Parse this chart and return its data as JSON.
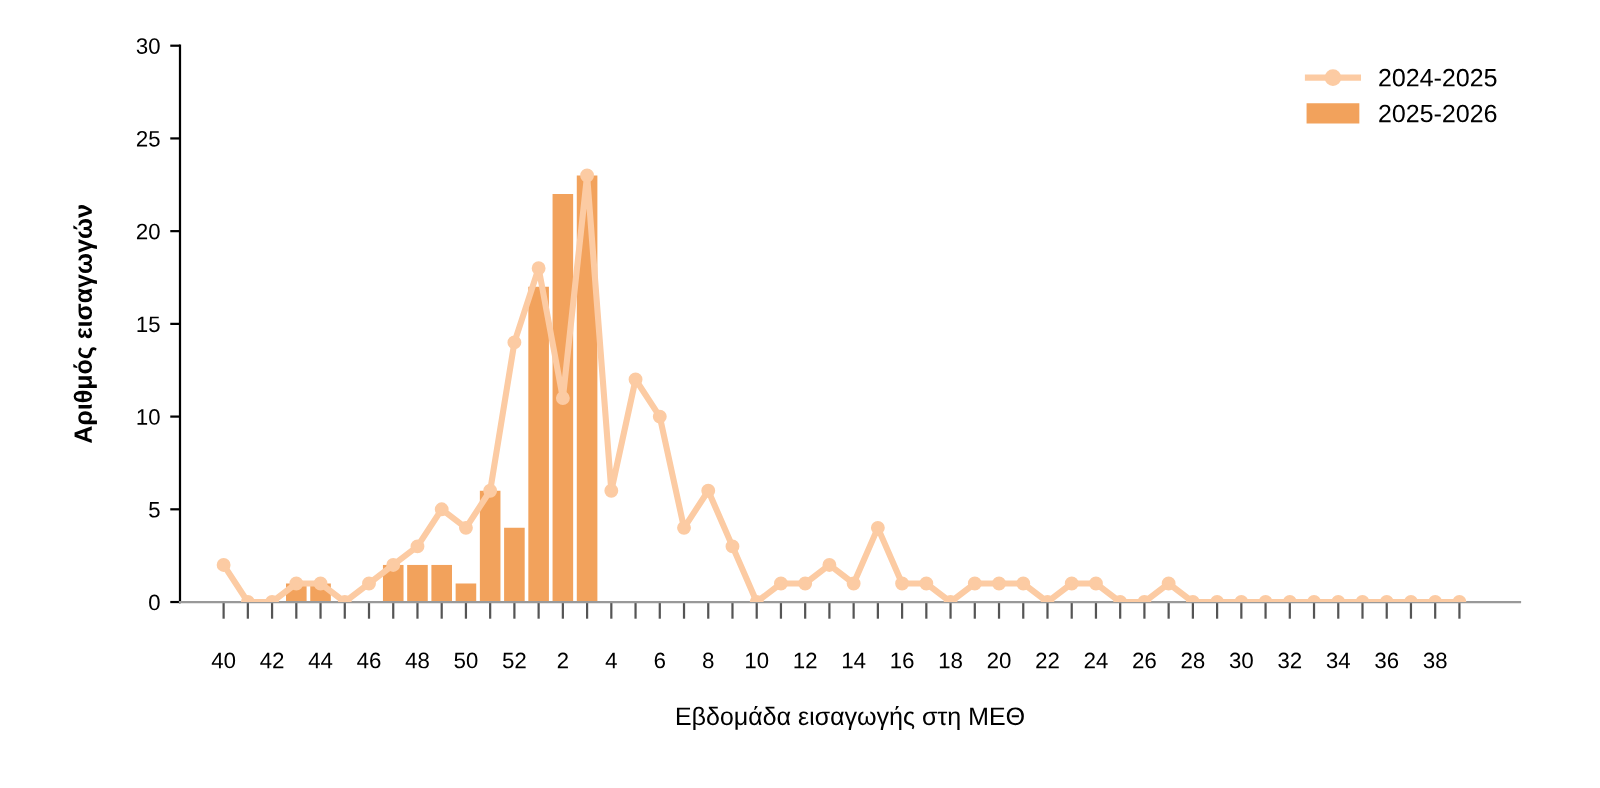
{
  "chart_data": {
    "type": "bar",
    "xlabel": "Εβδομάδα εισαγωγής στη ΜΕΘ",
    "ylabel": "Αριθμός εισαγωγών",
    "categories": [
      "40",
      null,
      "42",
      null,
      "44",
      null,
      "46",
      null,
      "48",
      null,
      "50",
      null,
      "52",
      null,
      "2",
      null,
      "4",
      null,
      "6",
      null,
      "8",
      null,
      "10",
      null,
      "12",
      null,
      "14",
      null,
      "16",
      null,
      "18",
      null,
      "20",
      null,
      "22",
      null,
      "24",
      null,
      "26",
      null,
      "28",
      null,
      "30",
      null,
      "32",
      null,
      "34",
      null,
      "36",
      null,
      "38",
      null
    ],
    "series": [
      {
        "name": "2024-2025",
        "type": "line",
        "color": "#fccba3",
        "marker": "circle",
        "line_style": "solid",
        "values": [
          2,
          0,
          0,
          1,
          1,
          0,
          1,
          2,
          3,
          5,
          4,
          6,
          14,
          18,
          11,
          23,
          6,
          12,
          10,
          4,
          6,
          3,
          0,
          1,
          1,
          2,
          1,
          4,
          1,
          1,
          0,
          1,
          1,
          1,
          0,
          1,
          1,
          0,
          0,
          1,
          0,
          0,
          0,
          0,
          0,
          0,
          0,
          0,
          0,
          0,
          0,
          0
        ]
      },
      {
        "name": "2025-2026",
        "color": "#f2a25c",
        "values": [
          0,
          0,
          0,
          1,
          1,
          0,
          0,
          2,
          2,
          2,
          1,
          6,
          4,
          17,
          22,
          23,
          null,
          null,
          null,
          null,
          null,
          null,
          null,
          null,
          null,
          null,
          null,
          null,
          null,
          null,
          null,
          null,
          null,
          null,
          null,
          null,
          null,
          null,
          null,
          null,
          null,
          null,
          null,
          null,
          null,
          null,
          null,
          null,
          null,
          null,
          null,
          null
        ]
      }
    ],
    "ylim": [
      0,
      30
    ],
    "yticks": [
      0,
      5,
      10,
      15,
      20,
      25,
      30
    ],
    "grid": false,
    "legend": "top right"
  }
}
